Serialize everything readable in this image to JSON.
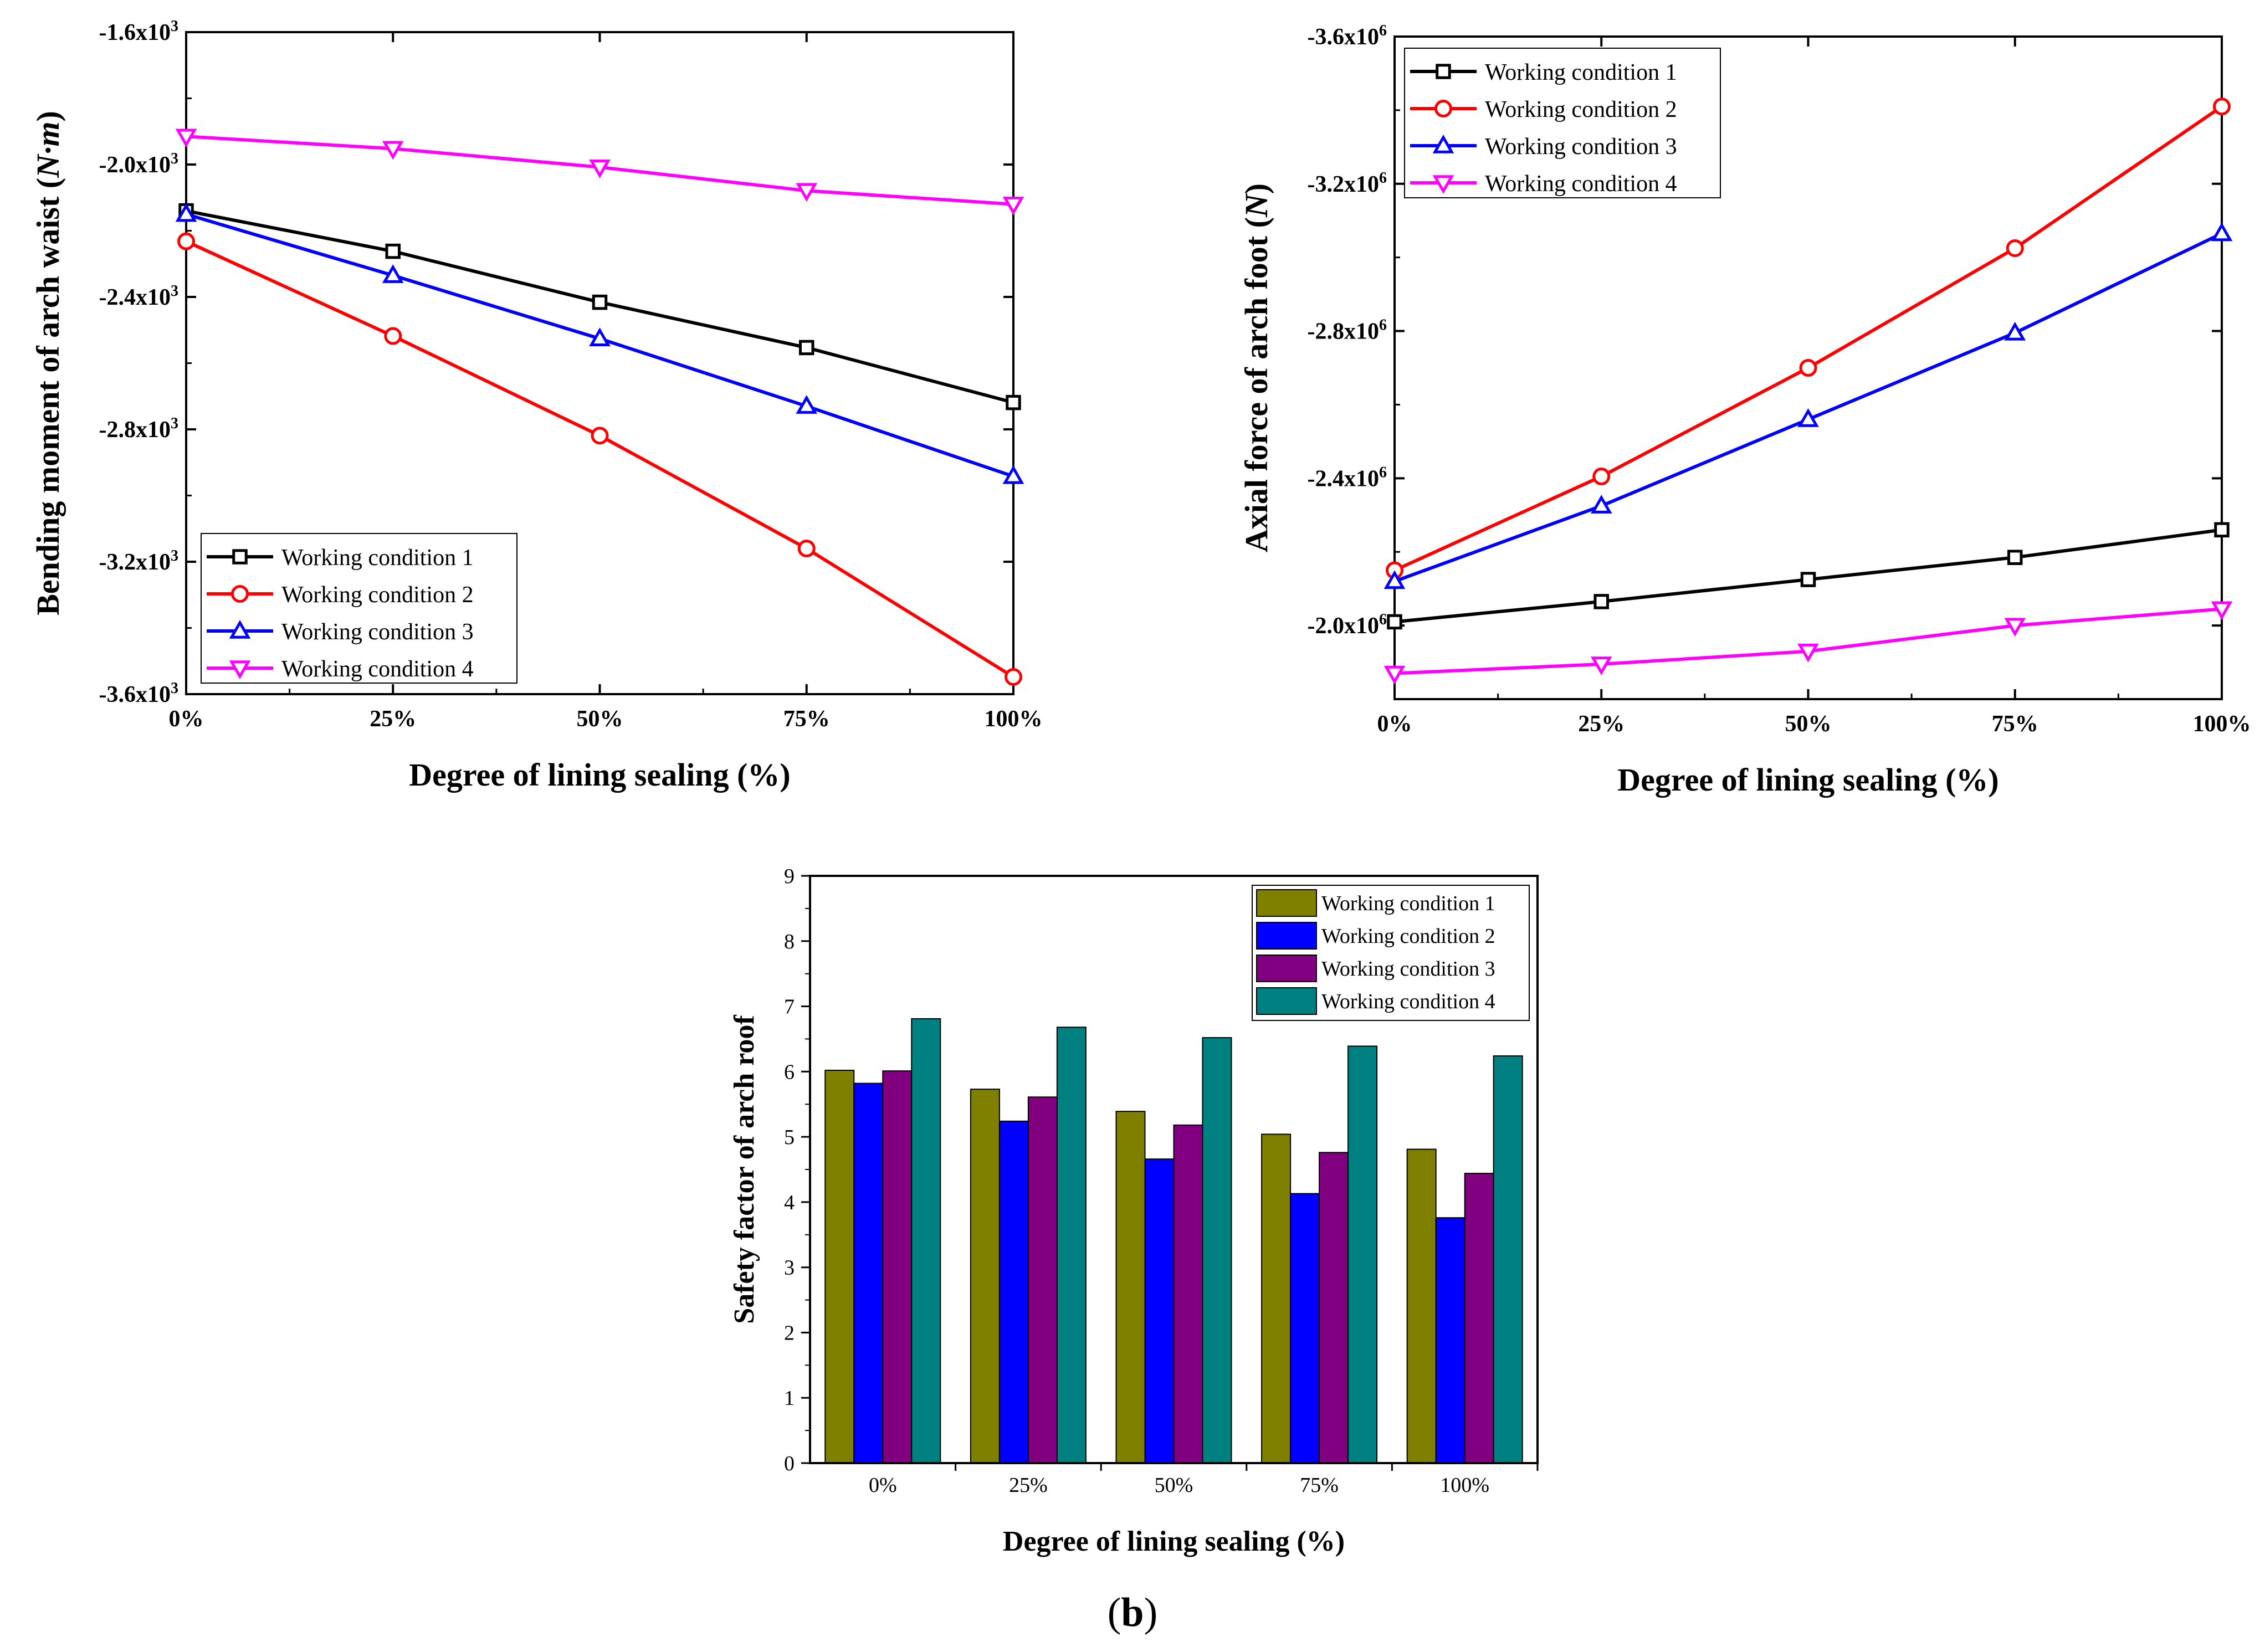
{
  "figure_label": "b",
  "colors": {
    "wc1_line": "#000000",
    "wc2_line": "#ff0000",
    "wc3_line": "#0000ff",
    "wc4_line": "#ff00ff",
    "wc1_bar": "#808000",
    "wc2_bar": "#0000ff",
    "wc3_bar": "#800080",
    "wc4_bar": "#008080"
  },
  "chart_data": [
    {
      "id": "bending",
      "type": "line",
      "xlabel": "Degree of lining sealing (%)",
      "ylabel_main": "Bending moment of arch waist (",
      "ylabel_unit": "N·m",
      "ylabel_close": ")",
      "categories": [
        "0%",
        "25%",
        "50%",
        "75%",
        "100%"
      ],
      "x": [
        0,
        25,
        50,
        75,
        100
      ],
      "ylim": [
        -3600,
        -1600
      ],
      "yticks": [
        {
          "value": -1600,
          "base": "-1.6x10",
          "exp": "3"
        },
        {
          "value": -2000,
          "base": "-2.0x10",
          "exp": "3"
        },
        {
          "value": -2400,
          "base": "-2.4x10",
          "exp": "3"
        },
        {
          "value": -2800,
          "base": "-2.8x10",
          "exp": "3"
        },
        {
          "value": -3200,
          "base": "-3.2x10",
          "exp": "3"
        },
        {
          "value": -3600,
          "base": "-3.6x10",
          "exp": "3"
        }
      ],
      "legend_position": "bottom-left",
      "series": [
        {
          "name": "Working condition 1",
          "marker": "square",
          "values": [
            -2140,
            -2262,
            -2416,
            -2553,
            -2719
          ]
        },
        {
          "name": "Working condition 2",
          "marker": "circle",
          "values": [
            -2232,
            -2518,
            -2819,
            -3160,
            -3548
          ]
        },
        {
          "name": "Working condition 3",
          "marker": "triangle-up",
          "values": [
            -2150,
            -2335,
            -2526,
            -2730,
            -2942
          ]
        },
        {
          "name": "Working condition 4",
          "marker": "triangle-down",
          "values": [
            -1915,
            -1952,
            -2008,
            -2079,
            -2120
          ]
        }
      ]
    },
    {
      "id": "axial",
      "type": "line",
      "xlabel": "Degree of lining sealing (%)",
      "ylabel_main": "Axial force of arch foot (",
      "ylabel_unit": "N",
      "ylabel_close": ")",
      "categories": [
        "0%",
        "25%",
        "50%",
        "75%",
        "100%"
      ],
      "x": [
        0,
        25,
        50,
        75,
        100
      ],
      "ylim": [
        -1800000,
        -3600000
      ],
      "yticks": [
        {
          "value": -2000000,
          "base": "-2.0x10",
          "exp": "6"
        },
        {
          "value": -2400000,
          "base": "-2.4x10",
          "exp": "6"
        },
        {
          "value": -2800000,
          "base": "-2.8x10",
          "exp": "6"
        },
        {
          "value": -3200000,
          "base": "-3.2x10",
          "exp": "6"
        },
        {
          "value": -3600000,
          "base": "-3.6x10",
          "exp": "6"
        }
      ],
      "legend_position": "top-left",
      "series": [
        {
          "name": "Working condition 1",
          "marker": "square",
          "values": [
            -2010000,
            -2065000,
            -2125000,
            -2185000,
            -2260000
          ]
        },
        {
          "name": "Working condition 2",
          "marker": "circle",
          "values": [
            -2150000,
            -2405000,
            -2700000,
            -3025000,
            -3410000
          ]
        },
        {
          "name": "Working condition 3",
          "marker": "triangle-up",
          "values": [
            -2120000,
            -2325000,
            -2560000,
            -2795000,
            -3065000
          ]
        },
        {
          "name": "Working condition 4",
          "marker": "triangle-down",
          "values": [
            -1870000,
            -1895000,
            -1930000,
            -2000000,
            -2045000
          ]
        }
      ]
    },
    {
      "id": "safety",
      "type": "bar",
      "xlabel": "Degree of lining sealing (%)",
      "ylabel": "Safety factor of arch roof",
      "categories": [
        "0%",
        "25%",
        "50%",
        "75%",
        "100%"
      ],
      "ylim": [
        0,
        9
      ],
      "yticks": [
        "0",
        "1",
        "2",
        "3",
        "4",
        "5",
        "6",
        "7",
        "8",
        "9"
      ],
      "legend_position": "top-right",
      "series": [
        {
          "name": "Working condition 1",
          "values": [
            6.02,
            5.73,
            5.39,
            5.04,
            4.81
          ]
        },
        {
          "name": "Working condition 2",
          "values": [
            5.82,
            5.24,
            4.66,
            4.13,
            3.76
          ]
        },
        {
          "name": "Working condition 3",
          "values": [
            6.01,
            5.61,
            5.18,
            4.76,
            4.44
          ]
        },
        {
          "name": "Working condition 4",
          "values": [
            6.81,
            6.68,
            6.52,
            6.39,
            6.24
          ]
        }
      ]
    }
  ]
}
